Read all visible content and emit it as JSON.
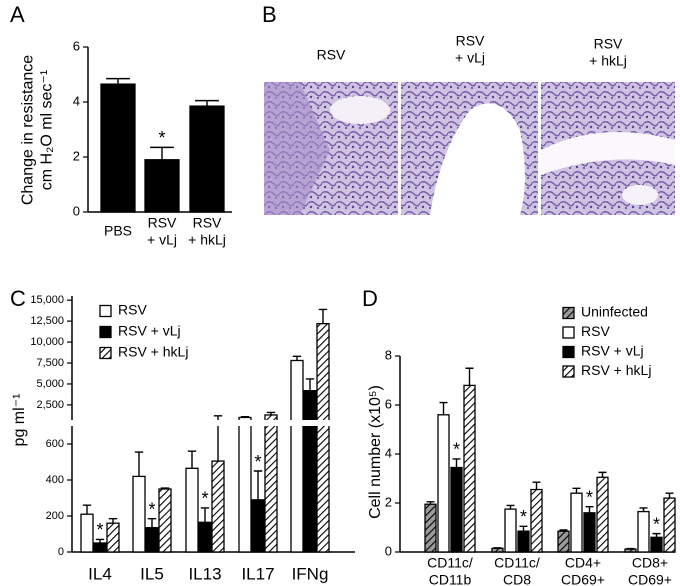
{
  "panel_b": {
    "panel": "B",
    "images": [
      "RSV",
      "RSV\n+ vLj",
      "RSV\n+ hkLj"
    ]
  },
  "chart_data": [
    {
      "type": "bar",
      "panel": "A",
      "y_label": "Change in resistance\ncm H₂O ml sec⁻¹",
      "categories": [
        "PBS",
        "RSV\n+ vLj",
        "RSV\n+ hkLj"
      ],
      "values": [
        4.65,
        1.9,
        3.85
      ],
      "errors": [
        0.2,
        0.45,
        0.2
      ],
      "stars": [
        null,
        "*",
        null
      ],
      "color": "#000000",
      "ylim": [
        0,
        6
      ],
      "yticks": [
        0,
        2,
        4,
        6
      ]
    },
    {
      "type": "bar",
      "panel": "C",
      "y_label": "pg ml⁻¹",
      "categories": [
        "IL4",
        "IL5",
        "IL13",
        "IL17",
        "IFNg"
      ],
      "segments": [
        {
          "ylim": [
            0,
            700
          ],
          "yticks": [
            0,
            200,
            400,
            600
          ]
        },
        {
          "ylim": [
            700,
            15500
          ],
          "yticks": [
            {
              "value": 2500,
              "label": "2,500"
            },
            {
              "value": 5000,
              "label": "5,000"
            },
            {
              "value": 7500,
              "label": "7,500"
            },
            {
              "value": 10000,
              "label": "10,000"
            },
            {
              "value": 12500,
              "label": "12,500"
            },
            {
              "value": 15000,
              "label": "15,000"
            }
          ]
        }
      ],
      "legend": "upper left",
      "series": [
        {
          "name": "RSV",
          "color": "#ffffff",
          "hatch": false,
          "values": [
            210,
            420,
            465,
            1000,
            7800
          ],
          "errors": [
            50,
            135,
            95,
            100,
            500
          ]
        },
        {
          "name": "RSV + vLj",
          "color": "#000000",
          "hatch": false,
          "values": [
            50,
            135,
            165,
            290,
            4200
          ],
          "errors": [
            20,
            50,
            80,
            160,
            1400
          ],
          "stars": [
            "*",
            "*",
            "*",
            "*",
            null
          ]
        },
        {
          "name": "RSV + hkLj",
          "color": "#ffffff",
          "hatch": true,
          "values": [
            160,
            350,
            505,
            1300,
            12200
          ],
          "errors": [
            25,
            5,
            700,
            300,
            1700
          ]
        }
      ]
    },
    {
      "type": "bar",
      "panel": "D",
      "y_label": "Cell number (x10⁵)",
      "categories": [
        "CD11c/\nCD11b",
        "CD11c/\nCD8",
        "CD4+\nCD69+",
        "CD8+\nCD69+"
      ],
      "ylim": [
        0,
        8
      ],
      "yticks": [
        0,
        2,
        4,
        6,
        8
      ],
      "legend": "upper right",
      "series": [
        {
          "name": "Uninfected",
          "color": "#9a9a9a",
          "hatch": true,
          "values": [
            1.95,
            0.15,
            0.85,
            0.12
          ],
          "errors": [
            0.1,
            0.02,
            0.05,
            0.02
          ]
        },
        {
          "name": "RSV",
          "color": "#ffffff",
          "hatch": false,
          "values": [
            5.6,
            1.75,
            2.4,
            1.65
          ],
          "errors": [
            0.5,
            0.15,
            0.2,
            0.15
          ]
        },
        {
          "name": "RSV + vLj",
          "color": "#000000",
          "hatch": false,
          "values": [
            3.45,
            0.85,
            1.6,
            0.6
          ],
          "errors": [
            0.35,
            0.2,
            0.25,
            0.15
          ],
          "stars": [
            "*",
            "*",
            "*",
            "*"
          ]
        },
        {
          "name": "RSV + hkLj",
          "color": "#ffffff",
          "hatch": true,
          "values": [
            6.8,
            2.55,
            3.05,
            2.2
          ],
          "errors": [
            0.7,
            0.3,
            0.2,
            0.2
          ]
        }
      ]
    }
  ]
}
